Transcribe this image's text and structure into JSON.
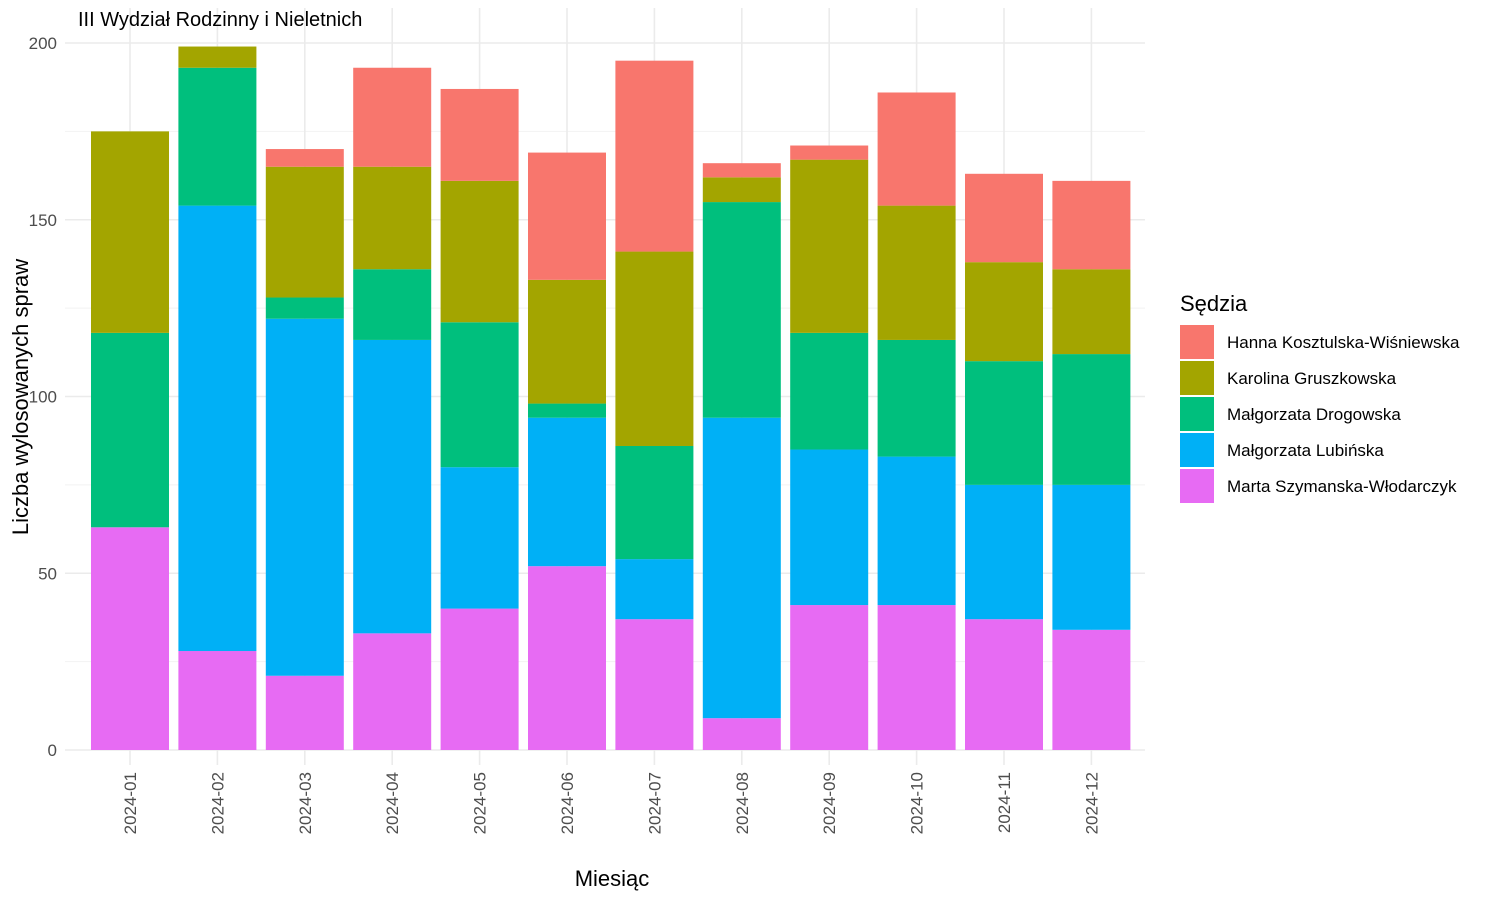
{
  "chart_data": {
    "type": "bar",
    "stacked": true,
    "title": "III Wydział Rodzinny i Nieletnich",
    "xlabel": "Miesiąc",
    "ylabel": "Liczba wylosowanych spraw",
    "ylim": [
      0,
      200
    ],
    "yticks": [
      0,
      50,
      100,
      150,
      200
    ],
    "grid": true,
    "legend_title": "Sędzia",
    "legend_position": "right",
    "categories": [
      "2024-01",
      "2024-02",
      "2024-03",
      "2024-04",
      "2024-05",
      "2024-06",
      "2024-07",
      "2024-08",
      "2024-09",
      "2024-10",
      "2024-11",
      "2024-12"
    ],
    "series": [
      {
        "name": "Marta Szymanska-Włodarczyk",
        "color": "#E76BF3",
        "values": [
          63,
          28,
          21,
          33,
          40,
          52,
          37,
          9,
          41,
          41,
          37,
          34
        ]
      },
      {
        "name": "Małgorzata Lubińska",
        "color": "#00B0F6",
        "values": [
          0,
          126,
          101,
          83,
          40,
          42,
          17,
          85,
          44,
          42,
          38,
          41
        ]
      },
      {
        "name": "Małgorzata Drogowska",
        "color": "#00BF7D",
        "values": [
          55,
          39,
          6,
          20,
          41,
          4,
          32,
          61,
          33,
          33,
          35,
          37
        ]
      },
      {
        "name": "Karolina Gruszkowska",
        "color": "#A3A500",
        "values": [
          57,
          6,
          37,
          29,
          40,
          35,
          55,
          7,
          49,
          38,
          28,
          24
        ]
      },
      {
        "name": "Hanna Kosztulska-Wiśniewska",
        "color": "#F8766D",
        "values": [
          0,
          0,
          5,
          28,
          26,
          36,
          54,
          4,
          4,
          32,
          25,
          25
        ]
      }
    ],
    "legend_order": [
      "Hanna Kosztulska-Wiśniewska",
      "Karolina Gruszkowska",
      "Małgorzata Drogowska",
      "Małgorzata Lubińska",
      "Marta Szymanska-Włodarczyk"
    ]
  }
}
